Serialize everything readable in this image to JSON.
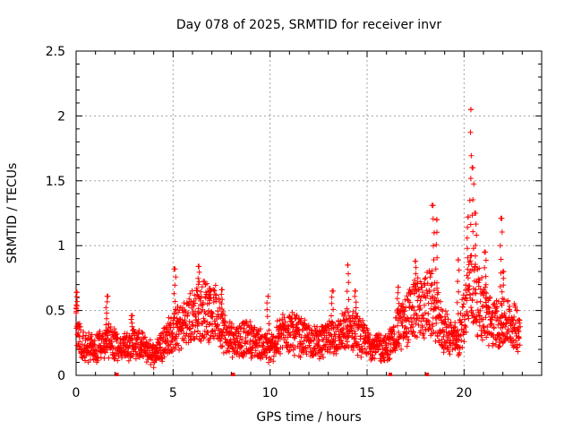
{
  "chart_data": {
    "type": "scatter",
    "title": "Day 078 of 2025, SRMTID for receiver invr",
    "xlabel": "GPS time / hours",
    "ylabel": "SRMTID / TECUs",
    "xlim": [
      0,
      24
    ],
    "ylim": [
      0,
      2.5
    ],
    "grid": true,
    "x_ticks": [
      {
        "value": 0,
        "label": "0"
      },
      {
        "value": 5,
        "label": "5"
      },
      {
        "value": 10,
        "label": "10"
      },
      {
        "value": 15,
        "label": "15"
      },
      {
        "value": 20,
        "label": "20"
      }
    ],
    "y_ticks": [
      {
        "value": 0,
        "label": "0"
      },
      {
        "value": 0.5,
        "label": "0.5"
      },
      {
        "value": 1,
        "label": "1"
      },
      {
        "value": 1.5,
        "label": "1.5"
      },
      {
        "value": 2,
        "label": "2"
      },
      {
        "value": 2.5,
        "label": "2.5"
      }
    ],
    "marker": "+",
    "series_color": "#ff0000",
    "gap_markers_x": [
      2.1,
      8.1,
      16.2,
      18.1
    ],
    "profile": [
      {
        "x": 0.0,
        "y": 0.4
      },
      {
        "x": 0.3,
        "y": 0.22
      },
      {
        "x": 1.0,
        "y": 0.2
      },
      {
        "x": 1.6,
        "y": 0.28
      },
      {
        "x": 2.2,
        "y": 0.2
      },
      {
        "x": 3.0,
        "y": 0.25
      },
      {
        "x": 4.0,
        "y": 0.16
      },
      {
        "x": 4.6,
        "y": 0.28
      },
      {
        "x": 5.2,
        "y": 0.35
      },
      {
        "x": 6.0,
        "y": 0.45
      },
      {
        "x": 6.6,
        "y": 0.52
      },
      {
        "x": 7.3,
        "y": 0.45
      },
      {
        "x": 7.8,
        "y": 0.28
      },
      {
        "x": 9.0,
        "y": 0.28
      },
      {
        "x": 10.0,
        "y": 0.2
      },
      {
        "x": 10.8,
        "y": 0.36
      },
      {
        "x": 11.5,
        "y": 0.3
      },
      {
        "x": 12.5,
        "y": 0.25
      },
      {
        "x": 13.5,
        "y": 0.3
      },
      {
        "x": 14.2,
        "y": 0.35
      },
      {
        "x": 15.0,
        "y": 0.25
      },
      {
        "x": 16.0,
        "y": 0.2
      },
      {
        "x": 16.6,
        "y": 0.35
      },
      {
        "x": 17.4,
        "y": 0.5
      },
      {
        "x": 18.3,
        "y": 0.55
      },
      {
        "x": 18.9,
        "y": 0.35
      },
      {
        "x": 19.7,
        "y": 0.25
      },
      {
        "x": 20.3,
        "y": 0.7
      },
      {
        "x": 20.8,
        "y": 0.55
      },
      {
        "x": 21.4,
        "y": 0.4
      },
      {
        "x": 22.3,
        "y": 0.4
      },
      {
        "x": 22.9,
        "y": 0.35
      }
    ],
    "peaks": [
      {
        "x": 0.05,
        "y": 0.64
      },
      {
        "x": 1.6,
        "y": 0.61
      },
      {
        "x": 2.9,
        "y": 0.46
      },
      {
        "x": 5.1,
        "y": 0.82
      },
      {
        "x": 6.3,
        "y": 0.84
      },
      {
        "x": 6.9,
        "y": 0.67
      },
      {
        "x": 7.5,
        "y": 0.66
      },
      {
        "x": 9.9,
        "y": 0.61
      },
      {
        "x": 13.2,
        "y": 0.65
      },
      {
        "x": 14.0,
        "y": 0.85
      },
      {
        "x": 14.4,
        "y": 0.65
      },
      {
        "x": 16.6,
        "y": 0.68
      },
      {
        "x": 17.5,
        "y": 0.88
      },
      {
        "x": 18.4,
        "y": 1.31
      },
      {
        "x": 18.6,
        "y": 1.2
      },
      {
        "x": 19.7,
        "y": 0.89
      },
      {
        "x": 20.2,
        "y": 1.22
      },
      {
        "x": 20.35,
        "y": 2.05
      },
      {
        "x": 20.45,
        "y": 1.6
      },
      {
        "x": 20.6,
        "y": 1.25
      },
      {
        "x": 21.1,
        "y": 0.95
      },
      {
        "x": 21.9,
        "y": 1.21
      },
      {
        "x": 22.0,
        "y": 0.8
      }
    ]
  }
}
